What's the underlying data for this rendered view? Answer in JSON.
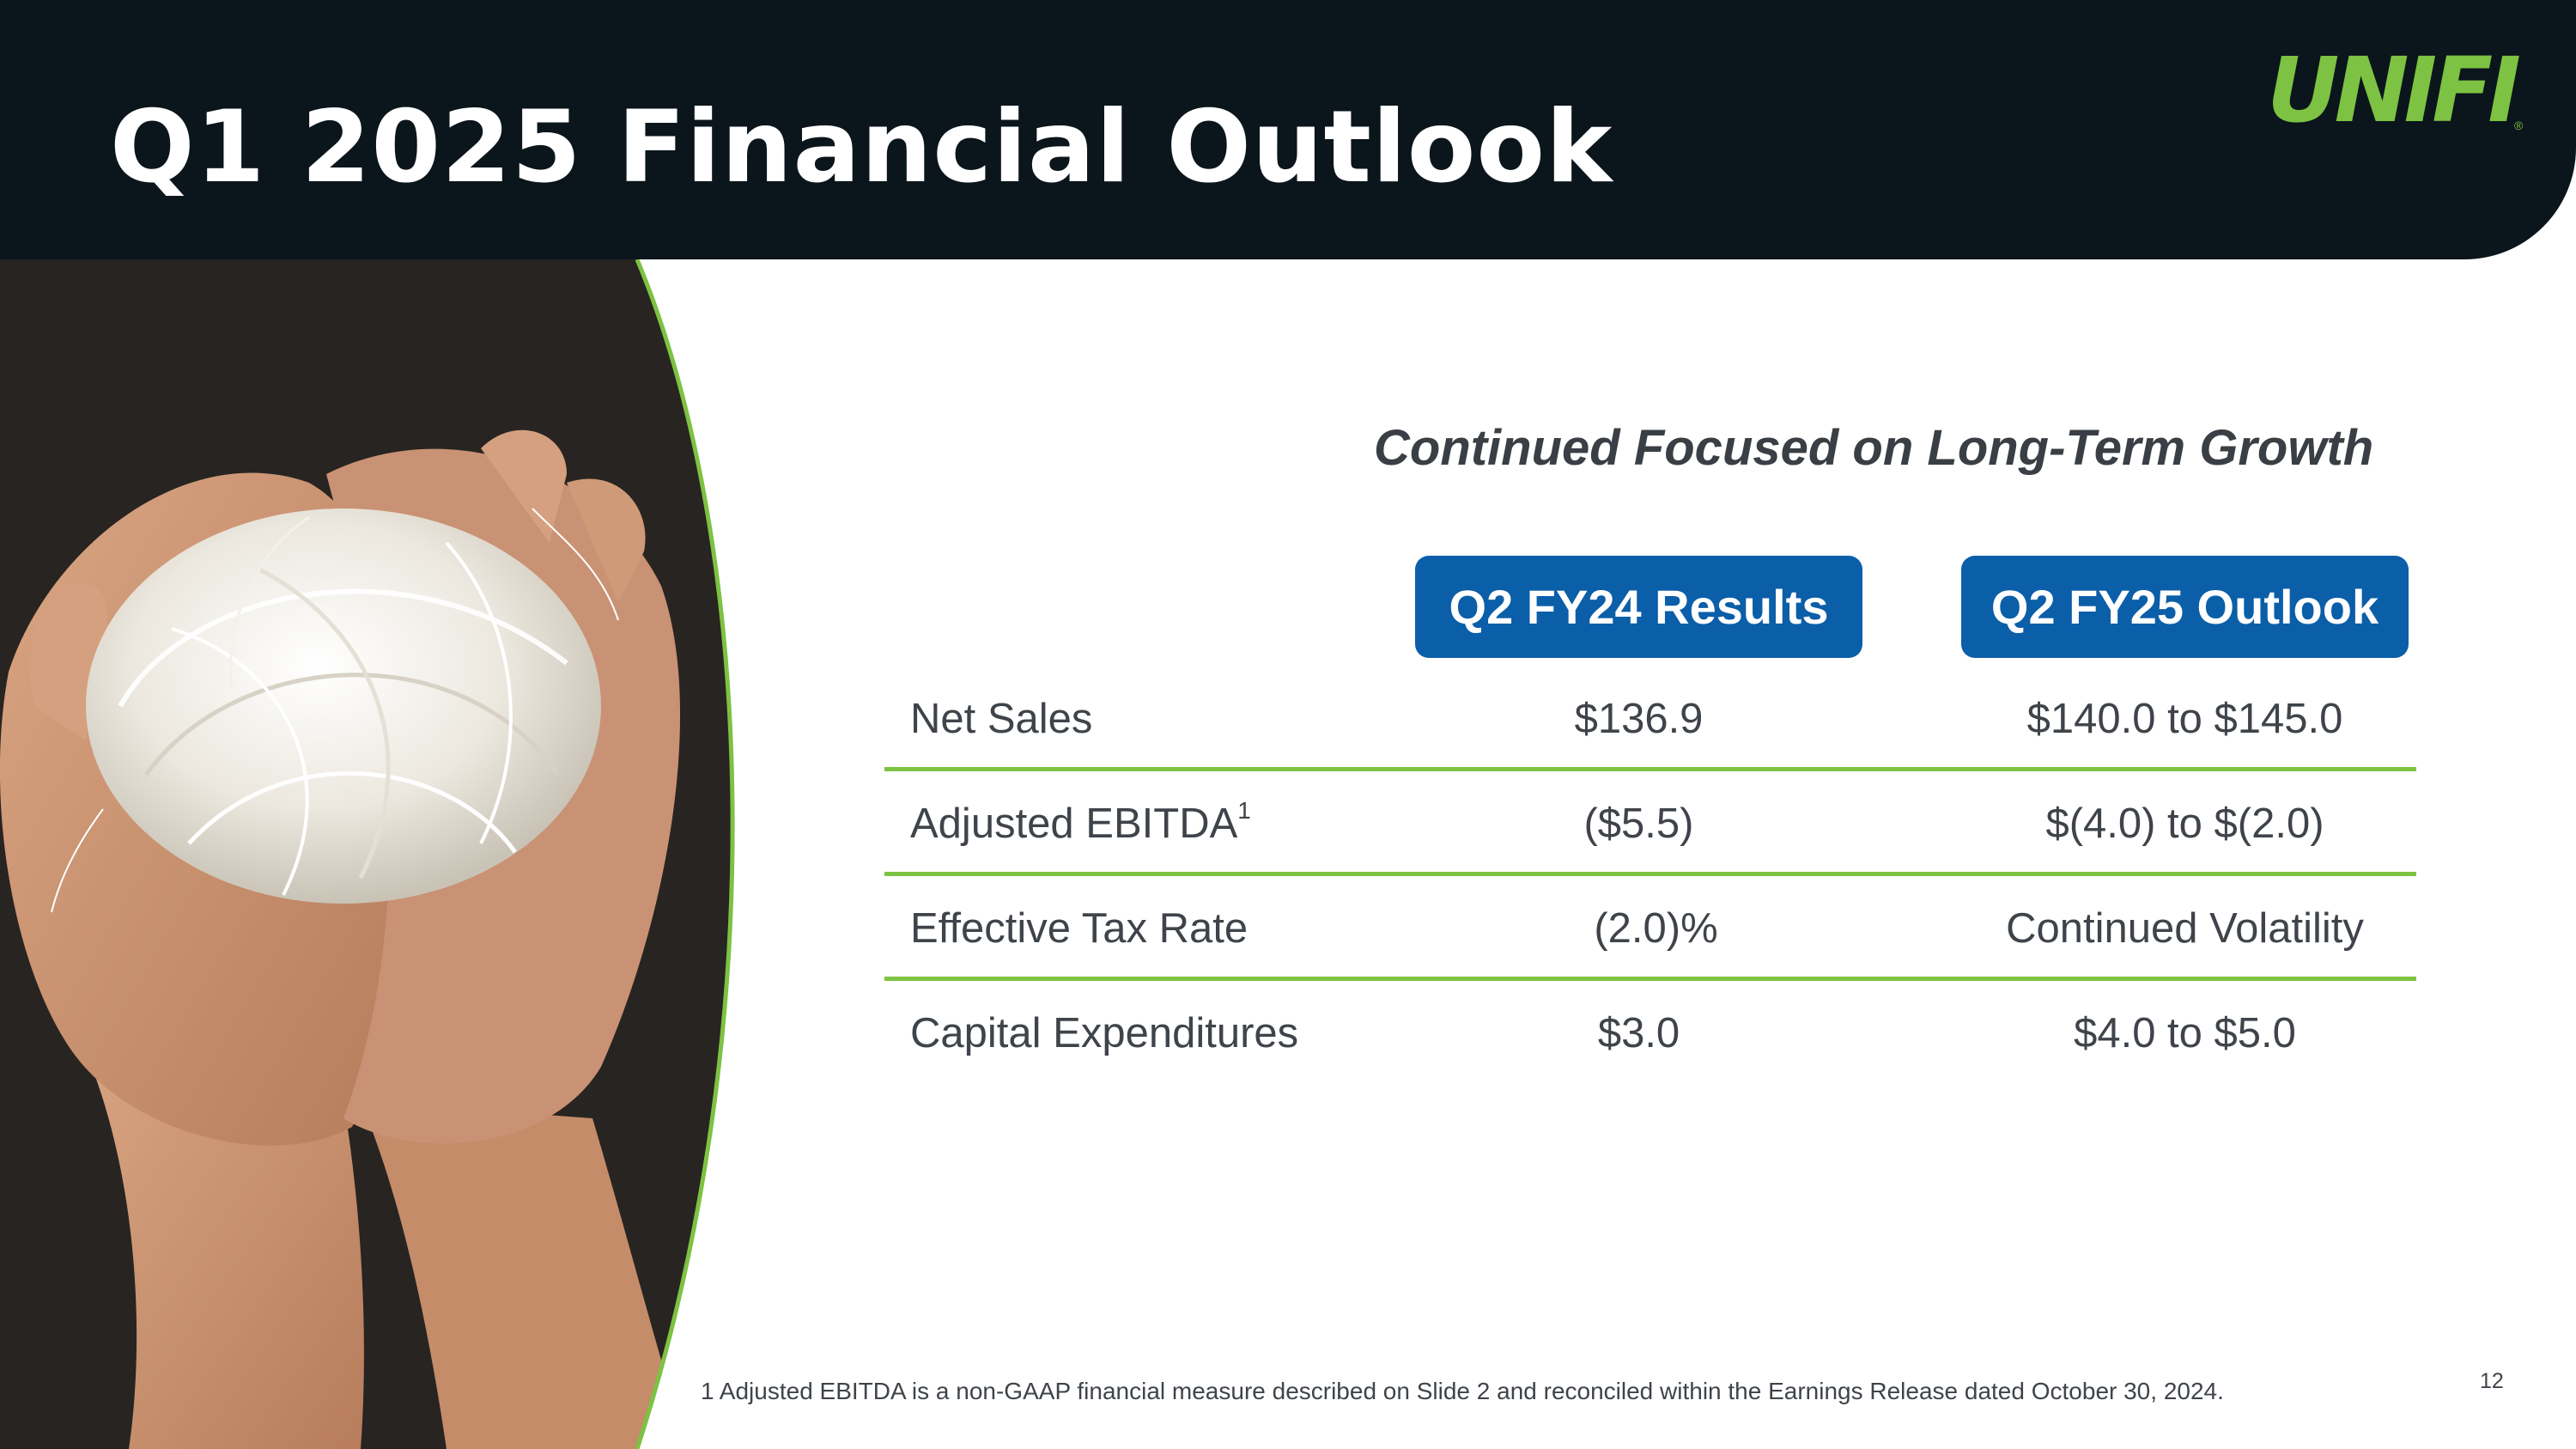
{
  "slide": {
    "title": "Q1 2025 Financial Outlook",
    "logo_text": "UNIFI",
    "logo_tm": "®",
    "subtitle": "Continued Focused on Long-Term Growth",
    "page_number": "12"
  },
  "table": {
    "col_headers": [
      "Q2 FY24 Results",
      "Q2 FY25 Outlook"
    ],
    "rows": [
      {
        "label": "Net Sales",
        "sup": "",
        "q2fy24": "$136.9",
        "q2fy25": "$140.0 to $145.0"
      },
      {
        "label": "Adjusted EBITDA",
        "sup": "1",
        "q2fy24": "($5.5)",
        "q2fy25": "$(4.0) to $(2.0)"
      },
      {
        "label": "Effective Tax Rate",
        "sup": "",
        "q2fy24": "(2.0)%",
        "q2fy25": "Continued Volatility"
      },
      {
        "label": "Capital Expenditures",
        "sup": "",
        "q2fy24": "$3.0",
        "q2fy25": "$4.0 to $5.0"
      }
    ]
  },
  "footnote": "1  Adjusted EBITDA is a non-GAAP financial measure described on Slide 2 and reconciled within the Earnings Release dated October 30, 2024.",
  "colors": {
    "header_bg": "#0b151c",
    "accent_blue": "#0b5ea8",
    "accent_green": "#7dc242",
    "text": "#3f444a"
  }
}
